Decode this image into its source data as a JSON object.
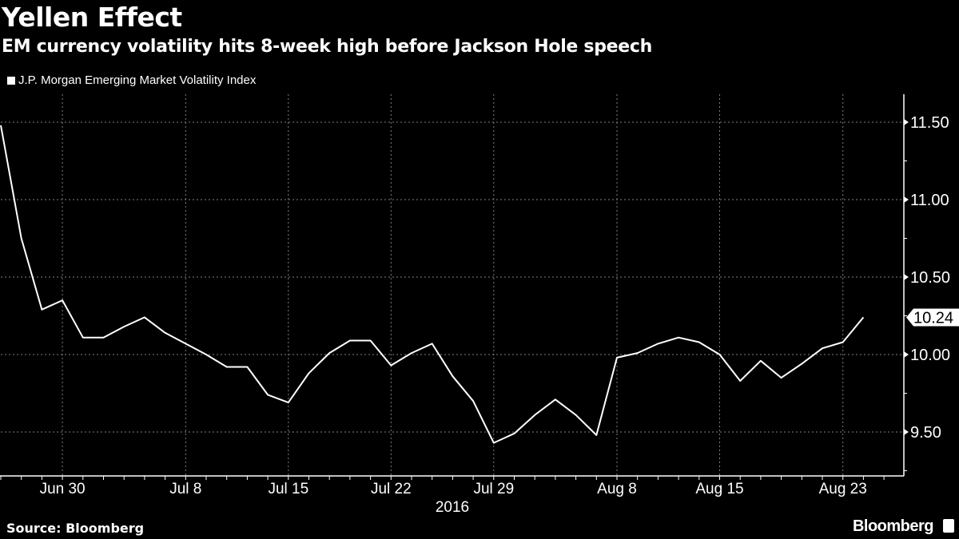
{
  "header": {
    "title": "Yellen Effect",
    "subtitle": "EM currency volatility hits 8-week high before Jackson Hole speech"
  },
  "footer": {
    "source": "Source: Bloomberg",
    "brand": "Bloomberg"
  },
  "colors": {
    "background": "#000000",
    "line": "#ffffff",
    "grid": "#7f7f7f"
  },
  "chart_data": {
    "type": "line",
    "title": "Yellen Effect",
    "subtitle": "EM currency volatility hits 8-week high before Jackson Hole speech",
    "xlabel": "2016",
    "ylabel": "",
    "legend": {
      "entries": [
        "J.P. Morgan Emerging Market Volatility Index"
      ],
      "placement": "top-left"
    },
    "ylim": [
      9.21,
      11.67
    ],
    "yticks": [
      9.5,
      10.0,
      10.5,
      11.0,
      11.5
    ],
    "ytick_labels": [
      "9.50",
      "10.00",
      "10.50",
      "11.00",
      "11.50"
    ],
    "xtick_labels": [
      {
        "label": "Jun 30",
        "index": 3
      },
      {
        "label": "Jul 8",
        "index": 9
      },
      {
        "label": "Jul 15",
        "index": 14
      },
      {
        "label": "Jul 22",
        "index": 19
      },
      {
        "label": "Jul 29",
        "index": 24
      },
      {
        "label": "Aug 8",
        "index": 30
      },
      {
        "label": "Aug 15",
        "index": 35
      },
      {
        "label": "Aug 23",
        "index": 41
      }
    ],
    "grid": true,
    "last_value_label": "10.24",
    "x": [
      "Jun 27",
      "Jun 28",
      "Jun 29",
      "Jun 30",
      "Jul 1",
      "Jul 4",
      "Jul 5",
      "Jul 6",
      "Jul 7",
      "Jul 8",
      "Jul 11",
      "Jul 12",
      "Jul 13",
      "Jul 14",
      "Jul 15",
      "Jul 18",
      "Jul 19",
      "Jul 20",
      "Jul 21",
      "Jul 22",
      "Jul 25",
      "Jul 26",
      "Jul 27",
      "Jul 28",
      "Jul 29",
      "Aug 1",
      "Aug 2",
      "Aug 3",
      "Aug 4",
      "Aug 5",
      "Aug 8",
      "Aug 9",
      "Aug 10",
      "Aug 11",
      "Aug 12",
      "Aug 15",
      "Aug 16",
      "Aug 17",
      "Aug 18",
      "Aug 19",
      "Aug 22",
      "Aug 23",
      "Aug 24"
    ],
    "series": [
      {
        "name": "J.P. Morgan Emerging Market Volatility Index",
        "values": [
          11.48,
          10.75,
          10.29,
          10.35,
          10.11,
          10.11,
          10.18,
          10.24,
          10.14,
          10.07,
          10.0,
          9.92,
          9.92,
          9.74,
          9.69,
          9.88,
          10.01,
          10.09,
          10.09,
          9.93,
          10.01,
          10.07,
          9.86,
          9.7,
          9.43,
          9.49,
          9.61,
          9.71,
          9.61,
          9.48,
          9.98,
          10.01,
          10.07,
          10.11,
          10.08,
          10.0,
          9.83,
          9.96,
          9.85,
          9.94,
          10.04,
          10.08,
          10.24
        ]
      }
    ],
    "total_ticks": 44
  }
}
